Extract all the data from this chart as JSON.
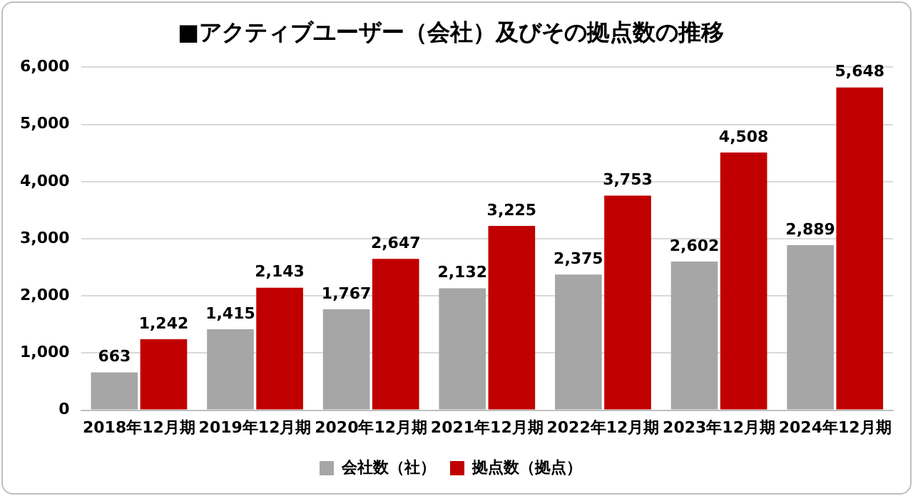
{
  "chart_data": {
    "type": "bar",
    "title": "■アクティブユーザー（会社）及びその拠点数の推移",
    "categories": [
      "2018年12月期",
      "2019年12月期",
      "2020年12月期",
      "2021年12月期",
      "2022年12月期",
      "2023年12月期",
      "2024年12月期"
    ],
    "series": [
      {
        "name": "会社数（社）",
        "color": "#a6a6a6",
        "values": [
          663,
          1415,
          1767,
          2132,
          2375,
          2602,
          2889
        ],
        "value_labels": [
          "663",
          "1,415",
          "1,767",
          "2,132",
          "2,375",
          "2,602",
          "2,889"
        ]
      },
      {
        "name": "拠点数（拠点）",
        "color": "#c00000",
        "values": [
          1242,
          2143,
          2647,
          3225,
          3753,
          4508,
          5648
        ],
        "value_labels": [
          "1,242",
          "2,143",
          "2,647",
          "3,225",
          "3,753",
          "4,508",
          "5,648"
        ]
      }
    ],
    "ylim": [
      0,
      6000
    ],
    "yticks": [
      0,
      {
        "value": 1000,
        "label": "1,000"
      },
      {
        "value": 2000,
        "label": "2,000"
      },
      {
        "value": 3000,
        "label": "3,000"
      },
      {
        "value": 4000,
        "label": "4,000"
      },
      {
        "value": 5000,
        "label": "5,000"
      },
      {
        "value": 6000,
        "label": "6,000"
      }
    ],
    "grid": "y",
    "legend": "bottom"
  }
}
